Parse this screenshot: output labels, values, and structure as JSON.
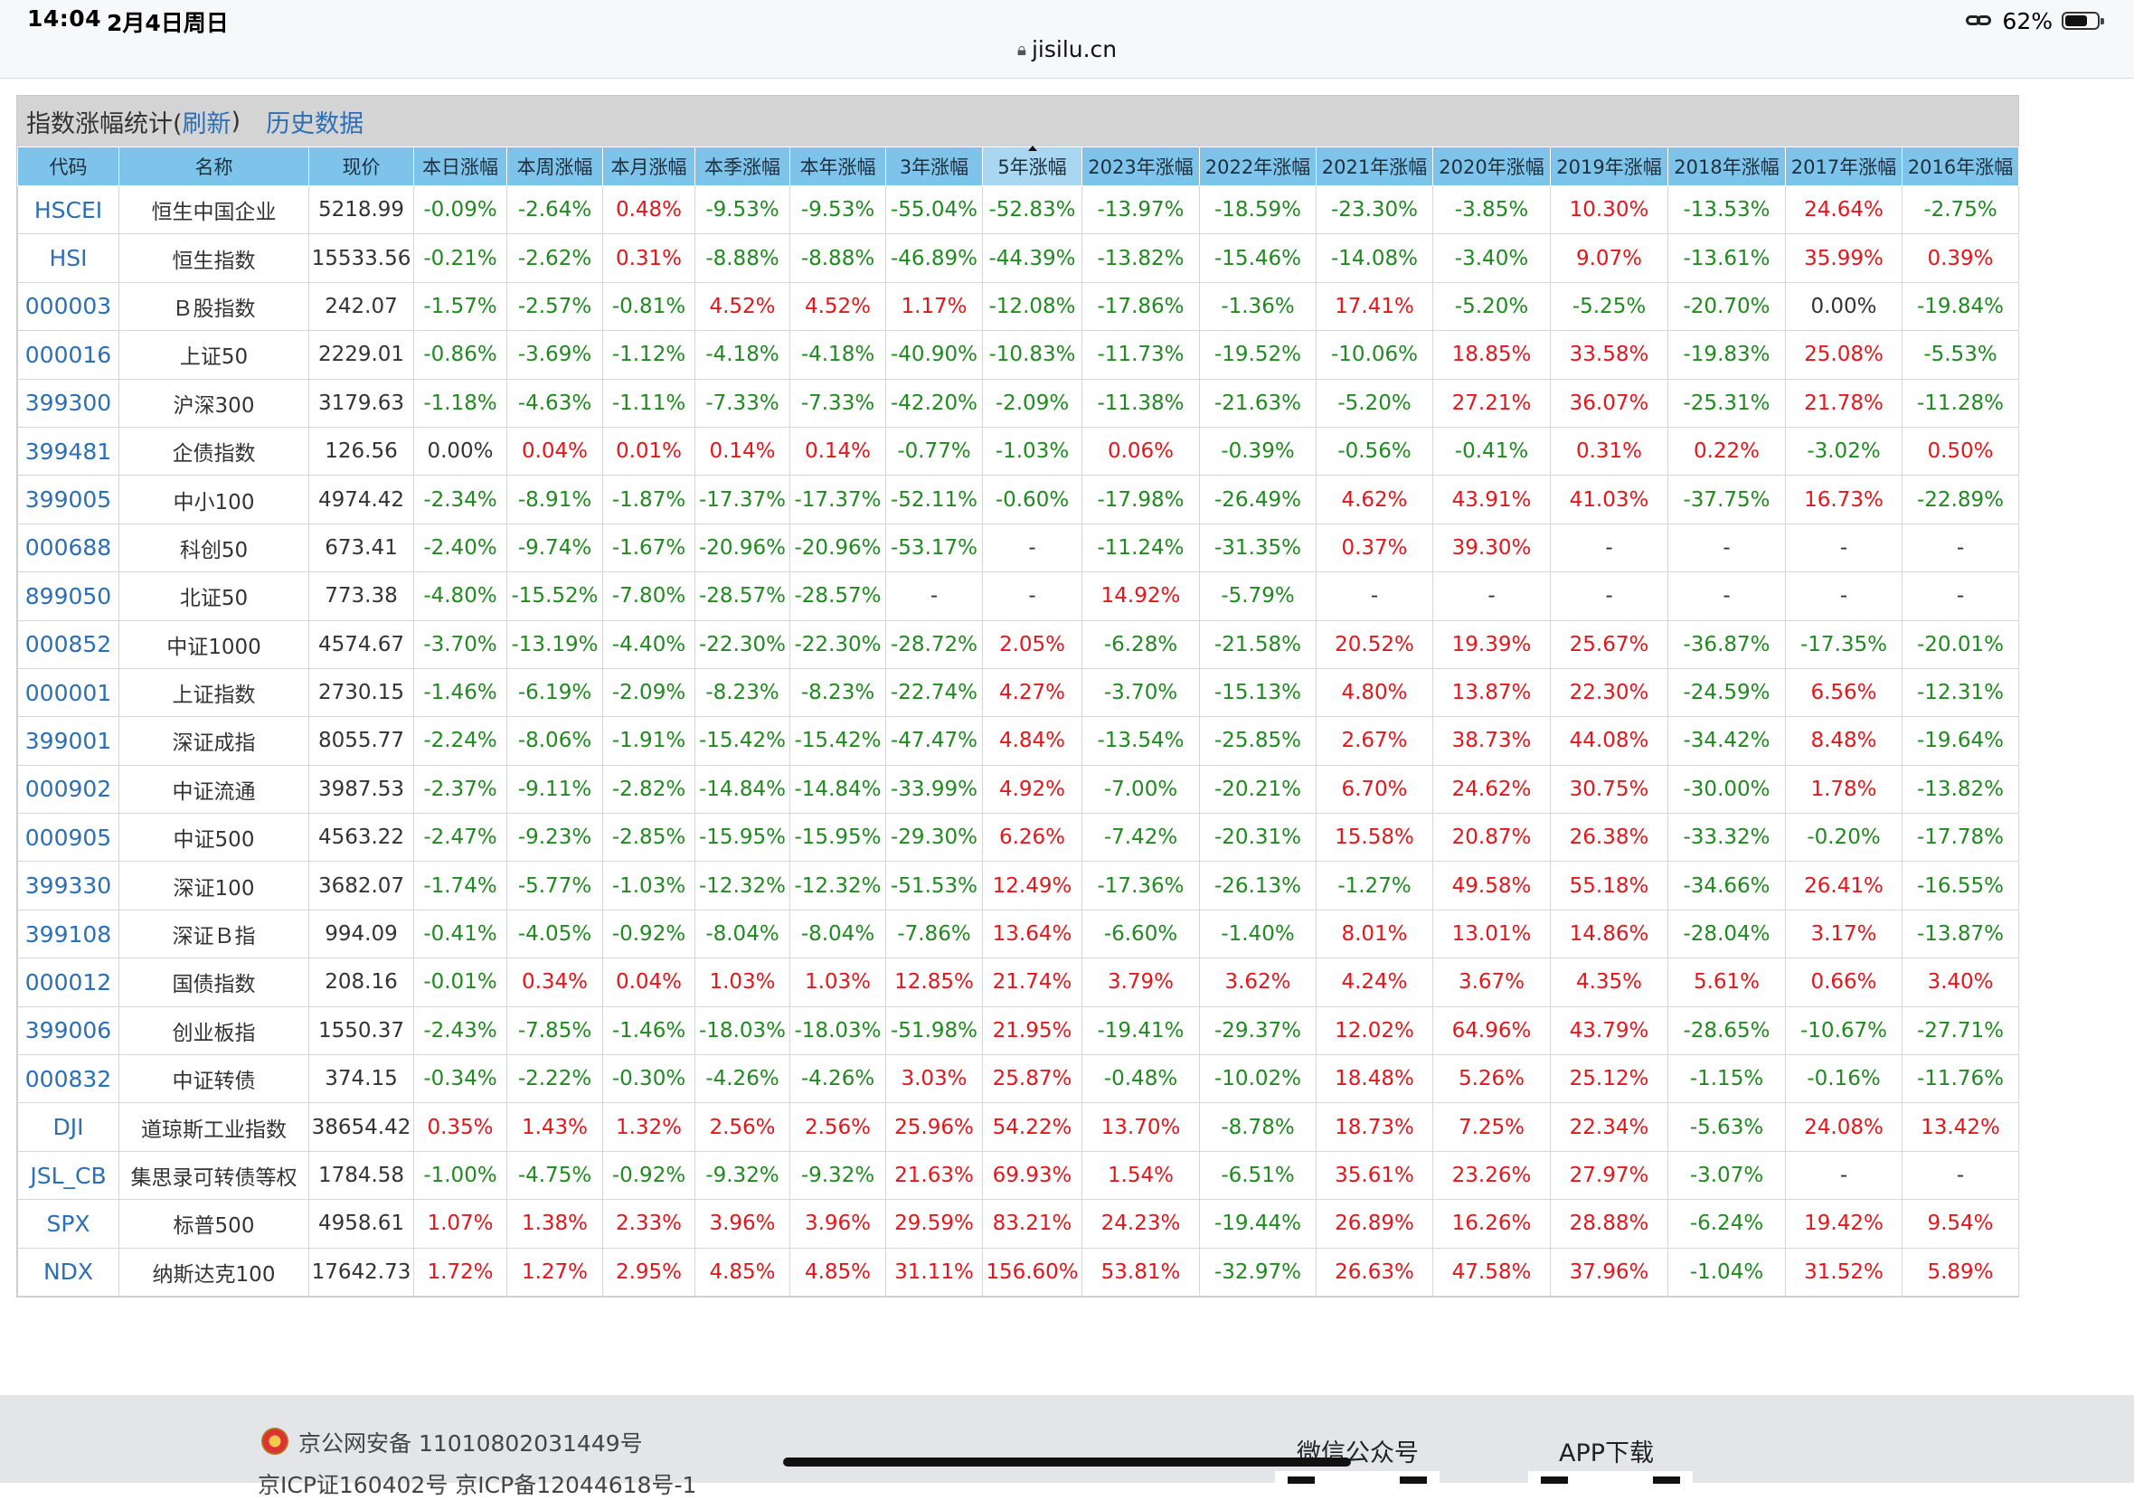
{
  "status_bar": {
    "time": "14:04",
    "date": "2月4日周日",
    "url": "jisilu.cn",
    "battery": "62%"
  },
  "panel": {
    "title_prefix": "指数涨幅统计(",
    "refresh_label": "刷新",
    "title_suffix": ")",
    "history_label": "历史数据"
  },
  "columns": [
    "代码",
    "名称",
    "现价",
    "本日涨幅",
    "本周涨幅",
    "本月涨幅",
    "本季涨幅",
    "本年涨幅",
    "3年涨幅",
    "5年涨幅",
    "2023年涨幅",
    "2022年涨幅",
    "2021年涨幅",
    "2020年涨幅",
    "2019年涨幅",
    "2018年涨幅",
    "2017年涨幅",
    "2016年涨幅"
  ],
  "sorted_column_index": 9,
  "rows": [
    [
      "HSCEI",
      "恒生中国企业",
      "5218.99",
      "-0.09%",
      "-2.64%",
      "0.48%",
      "-9.53%",
      "-9.53%",
      "-55.04%",
      "-52.83%",
      "-13.97%",
      "-18.59%",
      "-23.30%",
      "-3.85%",
      "10.30%",
      "-13.53%",
      "24.64%",
      "-2.75%"
    ],
    [
      "HSI",
      "恒生指数",
      "15533.56",
      "-0.21%",
      "-2.62%",
      "0.31%",
      "-8.88%",
      "-8.88%",
      "-46.89%",
      "-44.39%",
      "-13.82%",
      "-15.46%",
      "-14.08%",
      "-3.40%",
      "9.07%",
      "-13.61%",
      "35.99%",
      "0.39%"
    ],
    [
      "000003",
      "Ｂ股指数",
      "242.07",
      "-1.57%",
      "-2.57%",
      "-0.81%",
      "4.52%",
      "4.52%",
      "1.17%",
      "-12.08%",
      "-17.86%",
      "-1.36%",
      "17.41%",
      "-5.20%",
      "-5.25%",
      "-20.70%",
      "0.00%",
      "-19.84%"
    ],
    [
      "000016",
      "上证50",
      "2229.01",
      "-0.86%",
      "-3.69%",
      "-1.12%",
      "-4.18%",
      "-4.18%",
      "-40.90%",
      "-10.83%",
      "-11.73%",
      "-19.52%",
      "-10.06%",
      "18.85%",
      "33.58%",
      "-19.83%",
      "25.08%",
      "-5.53%"
    ],
    [
      "399300",
      "沪深300",
      "3179.63",
      "-1.18%",
      "-4.63%",
      "-1.11%",
      "-7.33%",
      "-7.33%",
      "-42.20%",
      "-2.09%",
      "-11.38%",
      "-21.63%",
      "-5.20%",
      "27.21%",
      "36.07%",
      "-25.31%",
      "21.78%",
      "-11.28%"
    ],
    [
      "399481",
      "企债指数",
      "126.56",
      "0.00%",
      "0.04%",
      "0.01%",
      "0.14%",
      "0.14%",
      "-0.77%",
      "-1.03%",
      "0.06%",
      "-0.39%",
      "-0.56%",
      "-0.41%",
      "0.31%",
      "0.22%",
      "-3.02%",
      "0.50%"
    ],
    [
      "399005",
      "中小100",
      "4974.42",
      "-2.34%",
      "-8.91%",
      "-1.87%",
      "-17.37%",
      "-17.37%",
      "-52.11%",
      "-0.60%",
      "-17.98%",
      "-26.49%",
      "4.62%",
      "43.91%",
      "41.03%",
      "-37.75%",
      "16.73%",
      "-22.89%"
    ],
    [
      "000688",
      "科创50",
      "673.41",
      "-2.40%",
      "-9.74%",
      "-1.67%",
      "-20.96%",
      "-20.96%",
      "-53.17%",
      "-",
      "-11.24%",
      "-31.35%",
      "0.37%",
      "39.30%",
      "-",
      "-",
      "-",
      "-"
    ],
    [
      "899050",
      "北证50",
      "773.38",
      "-4.80%",
      "-15.52%",
      "-7.80%",
      "-28.57%",
      "-28.57%",
      "-",
      "-",
      "14.92%",
      "-5.79%",
      "-",
      "-",
      "-",
      "-",
      "-",
      "-"
    ],
    [
      "000852",
      "中证1000",
      "4574.67",
      "-3.70%",
      "-13.19%",
      "-4.40%",
      "-22.30%",
      "-22.30%",
      "-28.72%",
      "2.05%",
      "-6.28%",
      "-21.58%",
      "20.52%",
      "19.39%",
      "25.67%",
      "-36.87%",
      "-17.35%",
      "-20.01%"
    ],
    [
      "000001",
      "上证指数",
      "2730.15",
      "-1.46%",
      "-6.19%",
      "-2.09%",
      "-8.23%",
      "-8.23%",
      "-22.74%",
      "4.27%",
      "-3.70%",
      "-15.13%",
      "4.80%",
      "13.87%",
      "22.30%",
      "-24.59%",
      "6.56%",
      "-12.31%"
    ],
    [
      "399001",
      "深证成指",
      "8055.77",
      "-2.24%",
      "-8.06%",
      "-1.91%",
      "-15.42%",
      "-15.42%",
      "-47.47%",
      "4.84%",
      "-13.54%",
      "-25.85%",
      "2.67%",
      "38.73%",
      "44.08%",
      "-34.42%",
      "8.48%",
      "-19.64%"
    ],
    [
      "000902",
      "中证流通",
      "3987.53",
      "-2.37%",
      "-9.11%",
      "-2.82%",
      "-14.84%",
      "-14.84%",
      "-33.99%",
      "4.92%",
      "-7.00%",
      "-20.21%",
      "6.70%",
      "24.62%",
      "30.75%",
      "-30.00%",
      "1.78%",
      "-13.82%"
    ],
    [
      "000905",
      "中证500",
      "4563.22",
      "-2.47%",
      "-9.23%",
      "-2.85%",
      "-15.95%",
      "-15.95%",
      "-29.30%",
      "6.26%",
      "-7.42%",
      "-20.31%",
      "15.58%",
      "20.87%",
      "26.38%",
      "-33.32%",
      "-0.20%",
      "-17.78%"
    ],
    [
      "399330",
      "深证100",
      "3682.07",
      "-1.74%",
      "-5.77%",
      "-1.03%",
      "-12.32%",
      "-12.32%",
      "-51.53%",
      "12.49%",
      "-17.36%",
      "-26.13%",
      "-1.27%",
      "49.58%",
      "55.18%",
      "-34.66%",
      "26.41%",
      "-16.55%"
    ],
    [
      "399108",
      "深证Ｂ指",
      "994.09",
      "-0.41%",
      "-4.05%",
      "-0.92%",
      "-8.04%",
      "-8.04%",
      "-7.86%",
      "13.64%",
      "-6.60%",
      "-1.40%",
      "8.01%",
      "13.01%",
      "14.86%",
      "-28.04%",
      "3.17%",
      "-13.87%"
    ],
    [
      "000012",
      "国债指数",
      "208.16",
      "-0.01%",
      "0.34%",
      "0.04%",
      "1.03%",
      "1.03%",
      "12.85%",
      "21.74%",
      "3.79%",
      "3.62%",
      "4.24%",
      "3.67%",
      "4.35%",
      "5.61%",
      "0.66%",
      "3.40%"
    ],
    [
      "399006",
      "创业板指",
      "1550.37",
      "-2.43%",
      "-7.85%",
      "-1.46%",
      "-18.03%",
      "-18.03%",
      "-51.98%",
      "21.95%",
      "-19.41%",
      "-29.37%",
      "12.02%",
      "64.96%",
      "43.79%",
      "-28.65%",
      "-10.67%",
      "-27.71%"
    ],
    [
      "000832",
      "中证转债",
      "374.15",
      "-0.34%",
      "-2.22%",
      "-0.30%",
      "-4.26%",
      "-4.26%",
      "3.03%",
      "25.87%",
      "-0.48%",
      "-10.02%",
      "18.48%",
      "5.26%",
      "25.12%",
      "-1.15%",
      "-0.16%",
      "-11.76%"
    ],
    [
      "DJI",
      "道琼斯工业指数",
      "38654.42",
      "0.35%",
      "1.43%",
      "1.32%",
      "2.56%",
      "2.56%",
      "25.96%",
      "54.22%",
      "13.70%",
      "-8.78%",
      "18.73%",
      "7.25%",
      "22.34%",
      "-5.63%",
      "24.08%",
      "13.42%"
    ],
    [
      "JSL_CB",
      "集思录可转债等权",
      "1784.58",
      "-1.00%",
      "-4.75%",
      "-0.92%",
      "-9.32%",
      "-9.32%",
      "21.63%",
      "69.93%",
      "1.54%",
      "-6.51%",
      "35.61%",
      "23.26%",
      "27.97%",
      "-3.07%",
      "-",
      "-"
    ],
    [
      "SPX",
      "标普500",
      "4958.61",
      "1.07%",
      "1.38%",
      "2.33%",
      "3.96%",
      "3.96%",
      "29.59%",
      "83.21%",
      "24.23%",
      "-19.44%",
      "26.89%",
      "16.26%",
      "28.88%",
      "-6.24%",
      "19.42%",
      "9.54%"
    ],
    [
      "NDX",
      "纳斯达克100",
      "17642.73",
      "1.72%",
      "1.27%",
      "2.95%",
      "4.85%",
      "4.85%",
      "31.11%",
      "156.60%",
      "53.81%",
      "-32.97%",
      "26.63%",
      "47.58%",
      "37.96%",
      "-1.04%",
      "31.52%",
      "5.89%"
    ]
  ],
  "footer": {
    "beian": "京公网安备 11010802031449号",
    "icp": "京ICP证160402号  京ICP备12044618号-1",
    "wechat_label": "微信公众号",
    "app_label": "APP下载"
  },
  "colors": {
    "positive": "#e2171c",
    "negative": "#1f8a1f",
    "link": "#2b6fb6",
    "header_bg": "#7ec4ea",
    "title_bar_bg": "#d4d4d4"
  }
}
